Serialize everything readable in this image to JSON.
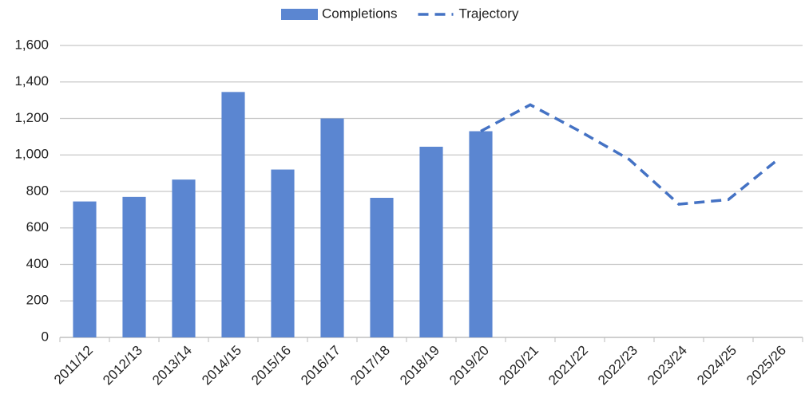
{
  "chart_data": {
    "type": "bar",
    "categories": [
      "2011/12",
      "2012/13",
      "2013/14",
      "2014/15",
      "2015/16",
      "2016/17",
      "2017/18",
      "2018/19",
      "2019/20",
      "2020/21",
      "2021/22",
      "2022/23",
      "2023/24",
      "2024/25",
      "2025/26"
    ],
    "series": [
      {
        "name": "Completions",
        "type": "bar",
        "color": "#5b86d1",
        "values": [
          745,
          770,
          865,
          1345,
          920,
          1200,
          765,
          1045,
          1130,
          null,
          null,
          null,
          null,
          null,
          null
        ]
      },
      {
        "name": "Trajectory",
        "type": "line",
        "dashed": true,
        "color": "#4472c4",
        "values": [
          null,
          null,
          null,
          null,
          null,
          null,
          null,
          null,
          1130,
          1275,
          1130,
          975,
          730,
          755,
          975
        ]
      }
    ],
    "ylim": [
      0,
      1600
    ],
    "yticks": [
      0,
      200,
      400,
      600,
      800,
      {
        "value": 1000,
        "label": "1,000"
      },
      {
        "value": 1200,
        "label": "1,200"
      },
      {
        "value": 1400,
        "label": "1,400"
      },
      {
        "value": 1600,
        "label": "1,600"
      }
    ],
    "grid": true,
    "legend": "top"
  }
}
